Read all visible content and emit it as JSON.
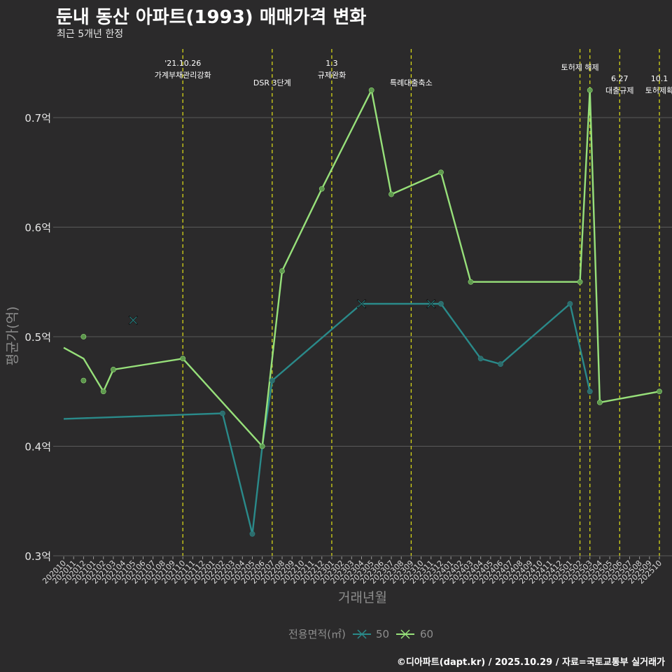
{
  "title": "둔내 동산 아파트(1993) 매매가격 변화",
  "subtitle": "최근 5개년 한정",
  "caption": "©디아파트(dapt.kr) / 2025.10.29 / 자료=국토교통부 실거래가",
  "colors": {
    "background": "#2b2a2b",
    "series50": "#2a8a8a",
    "series60": "#97e07a",
    "event_line": "#d4d418",
    "grid": "#5a5a5a"
  },
  "chart_data": {
    "type": "line",
    "title": "둔내 동산 아파트(1993) 매매가격 변화",
    "xlabel": "거래년월",
    "ylabel": "평균가(억)",
    "ylim": [
      0.3,
      0.73
    ],
    "yticks": [
      0.3,
      0.4,
      0.5,
      0.6,
      0.7
    ],
    "ytick_labels": [
      "0.3억",
      "0.4억",
      "0.5억",
      "0.6억",
      "0.7억"
    ],
    "categories": [
      "202010",
      "202011",
      "202012",
      "202101",
      "202102",
      "202103",
      "202104",
      "202105",
      "202106",
      "202107",
      "202108",
      "202109",
      "202110",
      "202111",
      "202112",
      "202201",
      "202202",
      "202203",
      "202204",
      "202205",
      "202206",
      "202207",
      "202208",
      "202209",
      "202210",
      "202211",
      "202212",
      "202301",
      "202302",
      "202303",
      "202304",
      "202305",
      "202306",
      "202307",
      "202308",
      "202309",
      "202310",
      "202311",
      "202312",
      "202401",
      "202402",
      "202403",
      "202404",
      "202405",
      "202406",
      "202407",
      "202408",
      "202409",
      "202410",
      "202411",
      "202412",
      "202501",
      "202502",
      "202503",
      "202504",
      "202505",
      "202506",
      "202507",
      "202508",
      "202509",
      "202510"
    ],
    "legend_title": "전용면적(㎡)",
    "series": [
      {
        "name": "50",
        "line": [
          [
            "202010",
            0.425
          ],
          [
            "202202",
            0.43
          ],
          [
            "202205",
            0.32
          ],
          [
            "202206",
            0.4
          ],
          [
            "202207",
            0.46
          ],
          [
            "202304",
            0.53
          ],
          [
            "202312",
            0.53
          ],
          [
            "202404",
            0.48
          ],
          [
            "202406",
            0.475
          ],
          [
            "202501",
            0.53
          ],
          [
            "202503",
            0.45
          ]
        ],
        "points": [
          [
            "202202",
            0.43
          ],
          [
            "202205",
            0.32
          ],
          [
            "202206",
            0.4
          ],
          [
            "202207",
            0.46
          ],
          [
            "202312",
            0.53
          ],
          [
            "202404",
            0.48
          ],
          [
            "202406",
            0.475
          ],
          [
            "202501",
            0.53
          ],
          [
            "202503",
            0.45
          ]
        ],
        "cancelled": [
          [
            "202105",
            0.515
          ],
          [
            "202304",
            0.53
          ],
          [
            "202311",
            0.53
          ]
        ]
      },
      {
        "name": "60",
        "line": [
          [
            "202010",
            0.49
          ],
          [
            "202012",
            0.48
          ],
          [
            "202102",
            0.45
          ],
          [
            "202103",
            0.47
          ],
          [
            "202110",
            0.48
          ],
          [
            "202206",
            0.4
          ],
          [
            "202208",
            0.56
          ],
          [
            "202212",
            0.635
          ],
          [
            "202305",
            0.725
          ],
          [
            "202307",
            0.63
          ],
          [
            "202312",
            0.65
          ],
          [
            "202403",
            0.55
          ],
          [
            "202502",
            0.55
          ],
          [
            "202503",
            0.725
          ],
          [
            "202504",
            0.44
          ],
          [
            "202510",
            0.45
          ]
        ],
        "points": [
          [
            "202012",
            0.5
          ],
          [
            "202012",
            0.46
          ],
          [
            "202102",
            0.45
          ],
          [
            "202103",
            0.47
          ],
          [
            "202110",
            0.48
          ],
          [
            "202206",
            0.4
          ],
          [
            "202208",
            0.56
          ],
          [
            "202212",
            0.635
          ],
          [
            "202305",
            0.725
          ],
          [
            "202307",
            0.63
          ],
          [
            "202312",
            0.65
          ],
          [
            "202403",
            0.55
          ],
          [
            "202502",
            0.55
          ],
          [
            "202503",
            0.725
          ],
          [
            "202504",
            0.44
          ],
          [
            "202510",
            0.45
          ]
        ],
        "cancelled": []
      }
    ],
    "events": [
      {
        "x": "202110",
        "lines": [
          "'21.10.26",
          "가계부채관리강화"
        ],
        "row": 0
      },
      {
        "x": "202207",
        "lines": [
          "DSR 3단계"
        ],
        "row": 2
      },
      {
        "x": "202301",
        "lines": [
          "1.3",
          "규제완화"
        ],
        "row": 0
      },
      {
        "x": "202309",
        "lines": [
          "특례대출축소"
        ],
        "row": 2
      },
      {
        "x": "202502",
        "lines": [
          "토허제 해제"
        ],
        "row": 1
      },
      {
        "x": "202503",
        "lines": [],
        "row": 1
      },
      {
        "x": "202506",
        "lines": [
          "6.27",
          "대출규제"
        ],
        "row": 3
      },
      {
        "x": "202510",
        "lines": [
          "10.1",
          "토허제확"
        ],
        "row": 3
      }
    ]
  }
}
